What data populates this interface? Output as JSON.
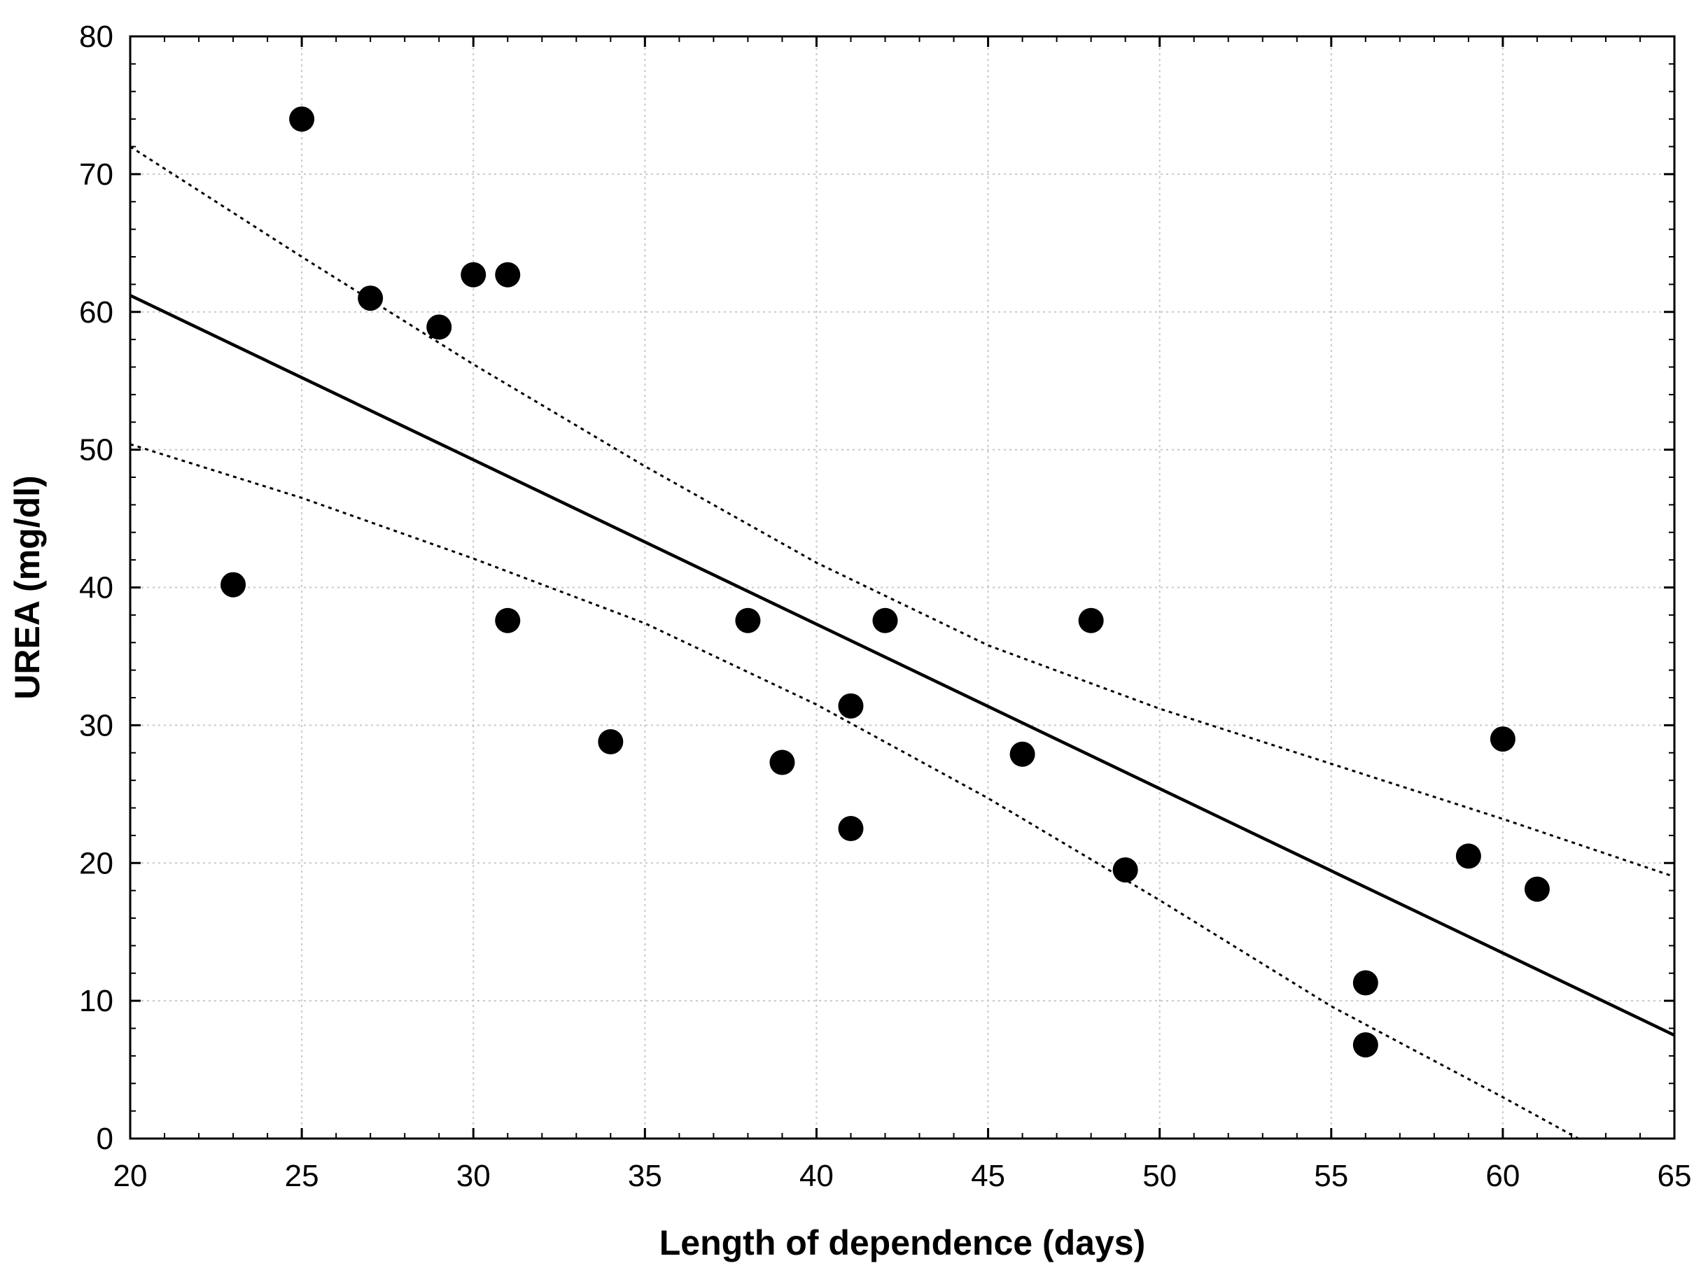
{
  "chart_data": {
    "type": "scatter",
    "xlabel": "Length of dependence (days)",
    "ylabel": "UREA (mg/dl)",
    "xlim": [
      20,
      65
    ],
    "ylim": [
      0,
      80
    ],
    "xticks": [
      20,
      25,
      30,
      35,
      40,
      45,
      50,
      55,
      60,
      65
    ],
    "yticks": [
      0,
      10,
      20,
      30,
      40,
      50,
      60,
      70,
      80
    ],
    "grid": true,
    "points": [
      {
        "x": 23,
        "y": 40.2
      },
      {
        "x": 25,
        "y": 74.0
      },
      {
        "x": 27,
        "y": 61.0
      },
      {
        "x": 29,
        "y": 58.9
      },
      {
        "x": 30,
        "y": 62.7
      },
      {
        "x": 31,
        "y": 62.7
      },
      {
        "x": 31,
        "y": 37.6
      },
      {
        "x": 34,
        "y": 28.8
      },
      {
        "x": 38,
        "y": 37.6
      },
      {
        "x": 39,
        "y": 27.3
      },
      {
        "x": 41,
        "y": 31.4
      },
      {
        "x": 41,
        "y": 22.5
      },
      {
        "x": 42,
        "y": 37.6
      },
      {
        "x": 46,
        "y": 27.9
      },
      {
        "x": 48,
        "y": 37.6
      },
      {
        "x": 49,
        "y": 19.5
      },
      {
        "x": 56,
        "y": 11.3
      },
      {
        "x": 56,
        "y": 6.8
      },
      {
        "x": 59,
        "y": 20.5
      },
      {
        "x": 60,
        "y": 29.0
      },
      {
        "x": 61,
        "y": 18.1
      }
    ],
    "regression_line": {
      "x": [
        20,
        65
      ],
      "y": [
        61.2,
        7.5
      ]
    },
    "confidence_upper": {
      "x": [
        20,
        25,
        30,
        35,
        40,
        45,
        50,
        55,
        60,
        65
      ],
      "y": [
        72.0,
        64.0,
        56.2,
        48.8,
        41.8,
        35.8,
        31.2,
        27.2,
        23.2,
        19.0
      ]
    },
    "confidence_lower": {
      "x": [
        20,
        25,
        30,
        35,
        40,
        45,
        50,
        55,
        60,
        62.2
      ],
      "y": [
        50.4,
        46.5,
        42.1,
        37.4,
        31.5,
        24.7,
        17.3,
        9.6,
        3.0,
        0.0
      ]
    }
  }
}
